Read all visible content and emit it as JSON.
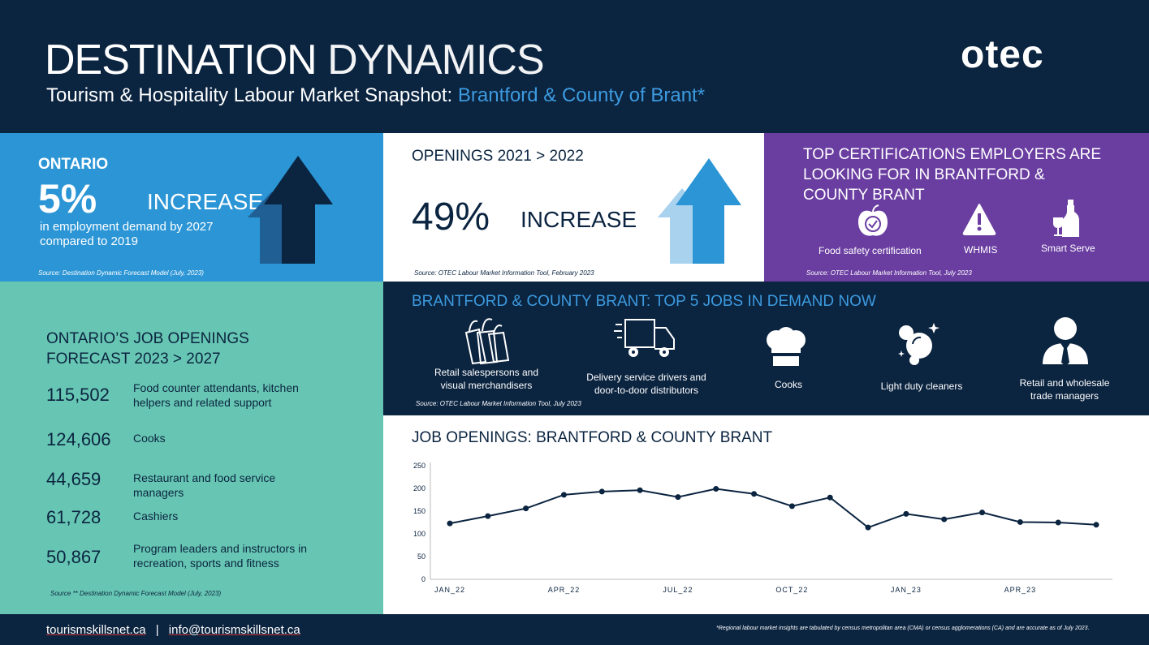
{
  "header": {
    "title_bold": "DESTINATION",
    "title_light": "DYNAMICS",
    "subtitle_prefix": "Tourism & Hospitality Labour Market Snapshot:",
    "subtitle_region": "Brantford & County of Brant*",
    "logo": "otec"
  },
  "ontario": {
    "heading": "ONTARIO",
    "percent": "5%",
    "increase": "INCREASE",
    "desc_1": "in employment demand by 2027",
    "desc_2": "compared to 2019",
    "source": "Source: Destination Dynamic Forecast Model (July, 2023)"
  },
  "openings": {
    "heading": "OPENINGS 2021 > 2022",
    "percent": "49%",
    "increase": "INCREASE",
    "source": "Source: OTEC Labour Market Information Tool, February 2023"
  },
  "certifications": {
    "heading_1": "TOP CERTIFICATIONS EMPLOYERS ARE",
    "heading_2": "LOOKING FOR IN BRANTFORD &",
    "heading_3": "COUNTY BRANT",
    "items": [
      {
        "label": "Food safety certification",
        "icon": "apple-check-icon"
      },
      {
        "label": "WHMIS",
        "icon": "warning-icon"
      },
      {
        "label": "Smart Serve",
        "icon": "bottle-glass-icon"
      }
    ],
    "source": "Source: OTEC Labour Market Information Tool, July 2023"
  },
  "forecast": {
    "heading_1": "ONTARIO’S JOB OPENINGS",
    "heading_2": "FORECAST 2023 > 2027",
    "rows": [
      {
        "value": "115,502",
        "label_1": "Food counter attendants, kitchen",
        "label_2": "helpers and related support"
      },
      {
        "value": "124,606",
        "label_1": "Cooks",
        "label_2": ""
      },
      {
        "value": "44,659",
        "label_1": "Restaurant and food service",
        "label_2": "managers"
      },
      {
        "value": "61,728",
        "label_1": "Cashiers",
        "label_2": ""
      },
      {
        "value": "50,867",
        "label_1": "Program leaders and instructors in",
        "label_2": "recreation, sports and fitness"
      }
    ],
    "source": "Source ** Destination Dynamic Forecast Model (July, 2023)"
  },
  "top5": {
    "heading": "BRANTFORD & COUNTY BRANT:  TOP 5 JOBS IN DEMAND NOW",
    "jobs": [
      {
        "label_1": "Retail salespersons and",
        "label_2": "visual merchandisers",
        "icon": "shopping-bags-icon"
      },
      {
        "label_1": "Delivery service drivers and",
        "label_2": "door-to-door distributors",
        "icon": "delivery-truck-icon"
      },
      {
        "label_1": "Cooks",
        "label_2": "",
        "icon": "chef-hat-icon"
      },
      {
        "label_1": "Light duty cleaners",
        "label_2": "",
        "icon": "cleaning-bubbles-icon"
      },
      {
        "label_1": "Retail and wholesale",
        "label_2": "trade managers",
        "icon": "manager-person-icon"
      }
    ],
    "source": "Source: OTEC Labour Market Information Tool, July 2023"
  },
  "chart_section": {
    "heading": "JOB OPENINGS: BRANTFORD & COUNTY BRANT"
  },
  "chart_data": {
    "type": "line",
    "title": "JOB OPENINGS: BRANTFORD & COUNTY BRANT",
    "x": [
      "2022-01",
      "2022-02",
      "2022-03",
      "2022-04",
      "2022-05",
      "2022-06",
      "2022-07",
      "2022-08",
      "2022-09",
      "2022-10",
      "2022-11",
      "2022-12",
      "2023-01",
      "2023-02",
      "2023-03",
      "2023-04",
      "2023-05",
      "2023-06"
    ],
    "values": [
      123,
      139,
      156,
      186,
      193,
      196,
      181,
      199,
      188,
      161,
      180,
      114,
      144,
      132,
      147,
      126,
      125,
      120
    ],
    "xtick_labels": [
      "JAN_22",
      "APR_22",
      "JUL_22",
      "OCT_22",
      "JAN_23",
      "APR_23"
    ],
    "xtick_index": [
      0,
      3,
      6,
      9,
      12,
      15
    ],
    "yticks": [
      0,
      50,
      100,
      150,
      200,
      250
    ],
    "ylim": [
      0,
      250
    ],
    "grid": false,
    "color": "#0b2440"
  },
  "footer": {
    "website": "tourismskillsnet.ca",
    "separator": "|",
    "email": "info@tourismskillsnet.ca",
    "note": "*Regional labour market insights are tabulated by census metropolitan area (CMA) or census agglomerations (CA) and are accurate as of July 2023."
  }
}
